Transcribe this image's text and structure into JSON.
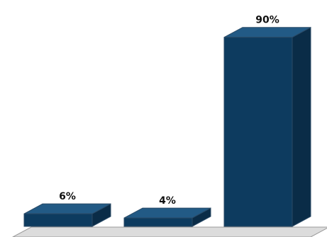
{
  "chart_data": {
    "type": "bar",
    "title": "",
    "xlabel": "",
    "ylabel": "",
    "categories": [
      "",
      "",
      ""
    ],
    "values": [
      6,
      4,
      90
    ],
    "value_labels": [
      "6%",
      "4%",
      "90%"
    ],
    "ylim": [
      0,
      100
    ],
    "grid": false,
    "legend": "none",
    "style": "3d-bars"
  },
  "colors": {
    "bar_front": "#0d3b5f",
    "bar_top": "#225a85",
    "bar_side": "#0a2c47",
    "bar_outline": "#2a4a66",
    "floor_fill": "#dcdcdc",
    "floor_edge": "#9a9a9a"
  }
}
